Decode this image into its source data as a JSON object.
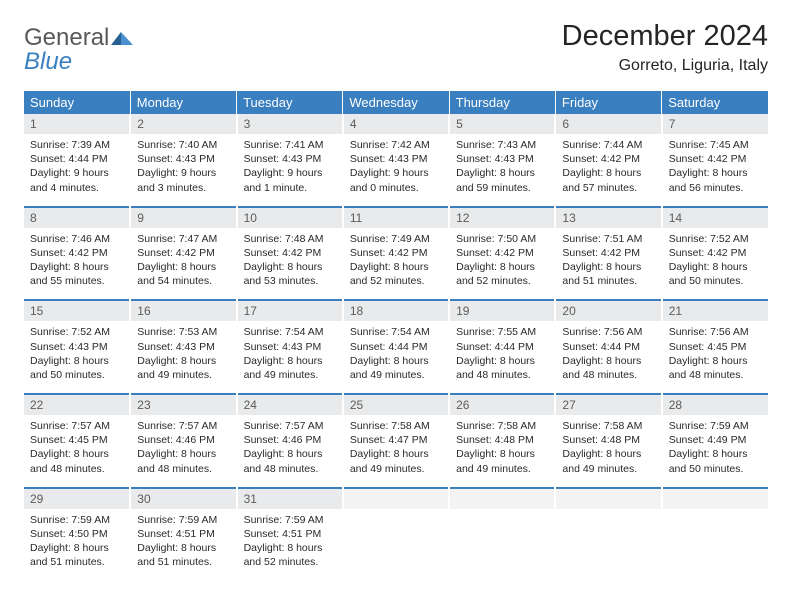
{
  "brand": {
    "word1": "General",
    "word2": "Blue"
  },
  "title": "December 2024",
  "location": "Gorreto, Liguria, Italy",
  "colors": {
    "header_bg": "#3a7fc0",
    "header_fg": "#fefefe",
    "daynum_bg": "#e9eaeb",
    "brand_gray": "#58595b",
    "brand_blue": "#3a7fc0"
  },
  "weekdays": [
    "Sunday",
    "Monday",
    "Tuesday",
    "Wednesday",
    "Thursday",
    "Friday",
    "Saturday"
  ],
  "days": [
    {
      "n": "1",
      "sunrise": "7:39 AM",
      "sunset": "4:44 PM",
      "daylight": "9 hours and 4 minutes."
    },
    {
      "n": "2",
      "sunrise": "7:40 AM",
      "sunset": "4:43 PM",
      "daylight": "9 hours and 3 minutes."
    },
    {
      "n": "3",
      "sunrise": "7:41 AM",
      "sunset": "4:43 PM",
      "daylight": "9 hours and 1 minute."
    },
    {
      "n": "4",
      "sunrise": "7:42 AM",
      "sunset": "4:43 PM",
      "daylight": "9 hours and 0 minutes."
    },
    {
      "n": "5",
      "sunrise": "7:43 AM",
      "sunset": "4:43 PM",
      "daylight": "8 hours and 59 minutes."
    },
    {
      "n": "6",
      "sunrise": "7:44 AM",
      "sunset": "4:42 PM",
      "daylight": "8 hours and 57 minutes."
    },
    {
      "n": "7",
      "sunrise": "7:45 AM",
      "sunset": "4:42 PM",
      "daylight": "8 hours and 56 minutes."
    },
    {
      "n": "8",
      "sunrise": "7:46 AM",
      "sunset": "4:42 PM",
      "daylight": "8 hours and 55 minutes."
    },
    {
      "n": "9",
      "sunrise": "7:47 AM",
      "sunset": "4:42 PM",
      "daylight": "8 hours and 54 minutes."
    },
    {
      "n": "10",
      "sunrise": "7:48 AM",
      "sunset": "4:42 PM",
      "daylight": "8 hours and 53 minutes."
    },
    {
      "n": "11",
      "sunrise": "7:49 AM",
      "sunset": "4:42 PM",
      "daylight": "8 hours and 52 minutes."
    },
    {
      "n": "12",
      "sunrise": "7:50 AM",
      "sunset": "4:42 PM",
      "daylight": "8 hours and 52 minutes."
    },
    {
      "n": "13",
      "sunrise": "7:51 AM",
      "sunset": "4:42 PM",
      "daylight": "8 hours and 51 minutes."
    },
    {
      "n": "14",
      "sunrise": "7:52 AM",
      "sunset": "4:42 PM",
      "daylight": "8 hours and 50 minutes."
    },
    {
      "n": "15",
      "sunrise": "7:52 AM",
      "sunset": "4:43 PM",
      "daylight": "8 hours and 50 minutes."
    },
    {
      "n": "16",
      "sunrise": "7:53 AM",
      "sunset": "4:43 PM",
      "daylight": "8 hours and 49 minutes."
    },
    {
      "n": "17",
      "sunrise": "7:54 AM",
      "sunset": "4:43 PM",
      "daylight": "8 hours and 49 minutes."
    },
    {
      "n": "18",
      "sunrise": "7:54 AM",
      "sunset": "4:44 PM",
      "daylight": "8 hours and 49 minutes."
    },
    {
      "n": "19",
      "sunrise": "7:55 AM",
      "sunset": "4:44 PM",
      "daylight": "8 hours and 48 minutes."
    },
    {
      "n": "20",
      "sunrise": "7:56 AM",
      "sunset": "4:44 PM",
      "daylight": "8 hours and 48 minutes."
    },
    {
      "n": "21",
      "sunrise": "7:56 AM",
      "sunset": "4:45 PM",
      "daylight": "8 hours and 48 minutes."
    },
    {
      "n": "22",
      "sunrise": "7:57 AM",
      "sunset": "4:45 PM",
      "daylight": "8 hours and 48 minutes."
    },
    {
      "n": "23",
      "sunrise": "7:57 AM",
      "sunset": "4:46 PM",
      "daylight": "8 hours and 48 minutes."
    },
    {
      "n": "24",
      "sunrise": "7:57 AM",
      "sunset": "4:46 PM",
      "daylight": "8 hours and 48 minutes."
    },
    {
      "n": "25",
      "sunrise": "7:58 AM",
      "sunset": "4:47 PM",
      "daylight": "8 hours and 49 minutes."
    },
    {
      "n": "26",
      "sunrise": "7:58 AM",
      "sunset": "4:48 PM",
      "daylight": "8 hours and 49 minutes."
    },
    {
      "n": "27",
      "sunrise": "7:58 AM",
      "sunset": "4:48 PM",
      "daylight": "8 hours and 49 minutes."
    },
    {
      "n": "28",
      "sunrise": "7:59 AM",
      "sunset": "4:49 PM",
      "daylight": "8 hours and 50 minutes."
    },
    {
      "n": "29",
      "sunrise": "7:59 AM",
      "sunset": "4:50 PM",
      "daylight": "8 hours and 51 minutes."
    },
    {
      "n": "30",
      "sunrise": "7:59 AM",
      "sunset": "4:51 PM",
      "daylight": "8 hours and 51 minutes."
    },
    {
      "n": "31",
      "sunrise": "7:59 AM",
      "sunset": "4:51 PM",
      "daylight": "8 hours and 52 minutes."
    }
  ],
  "labels": {
    "sunrise": "Sunrise:",
    "sunset": "Sunset:",
    "daylight": "Daylight:"
  }
}
